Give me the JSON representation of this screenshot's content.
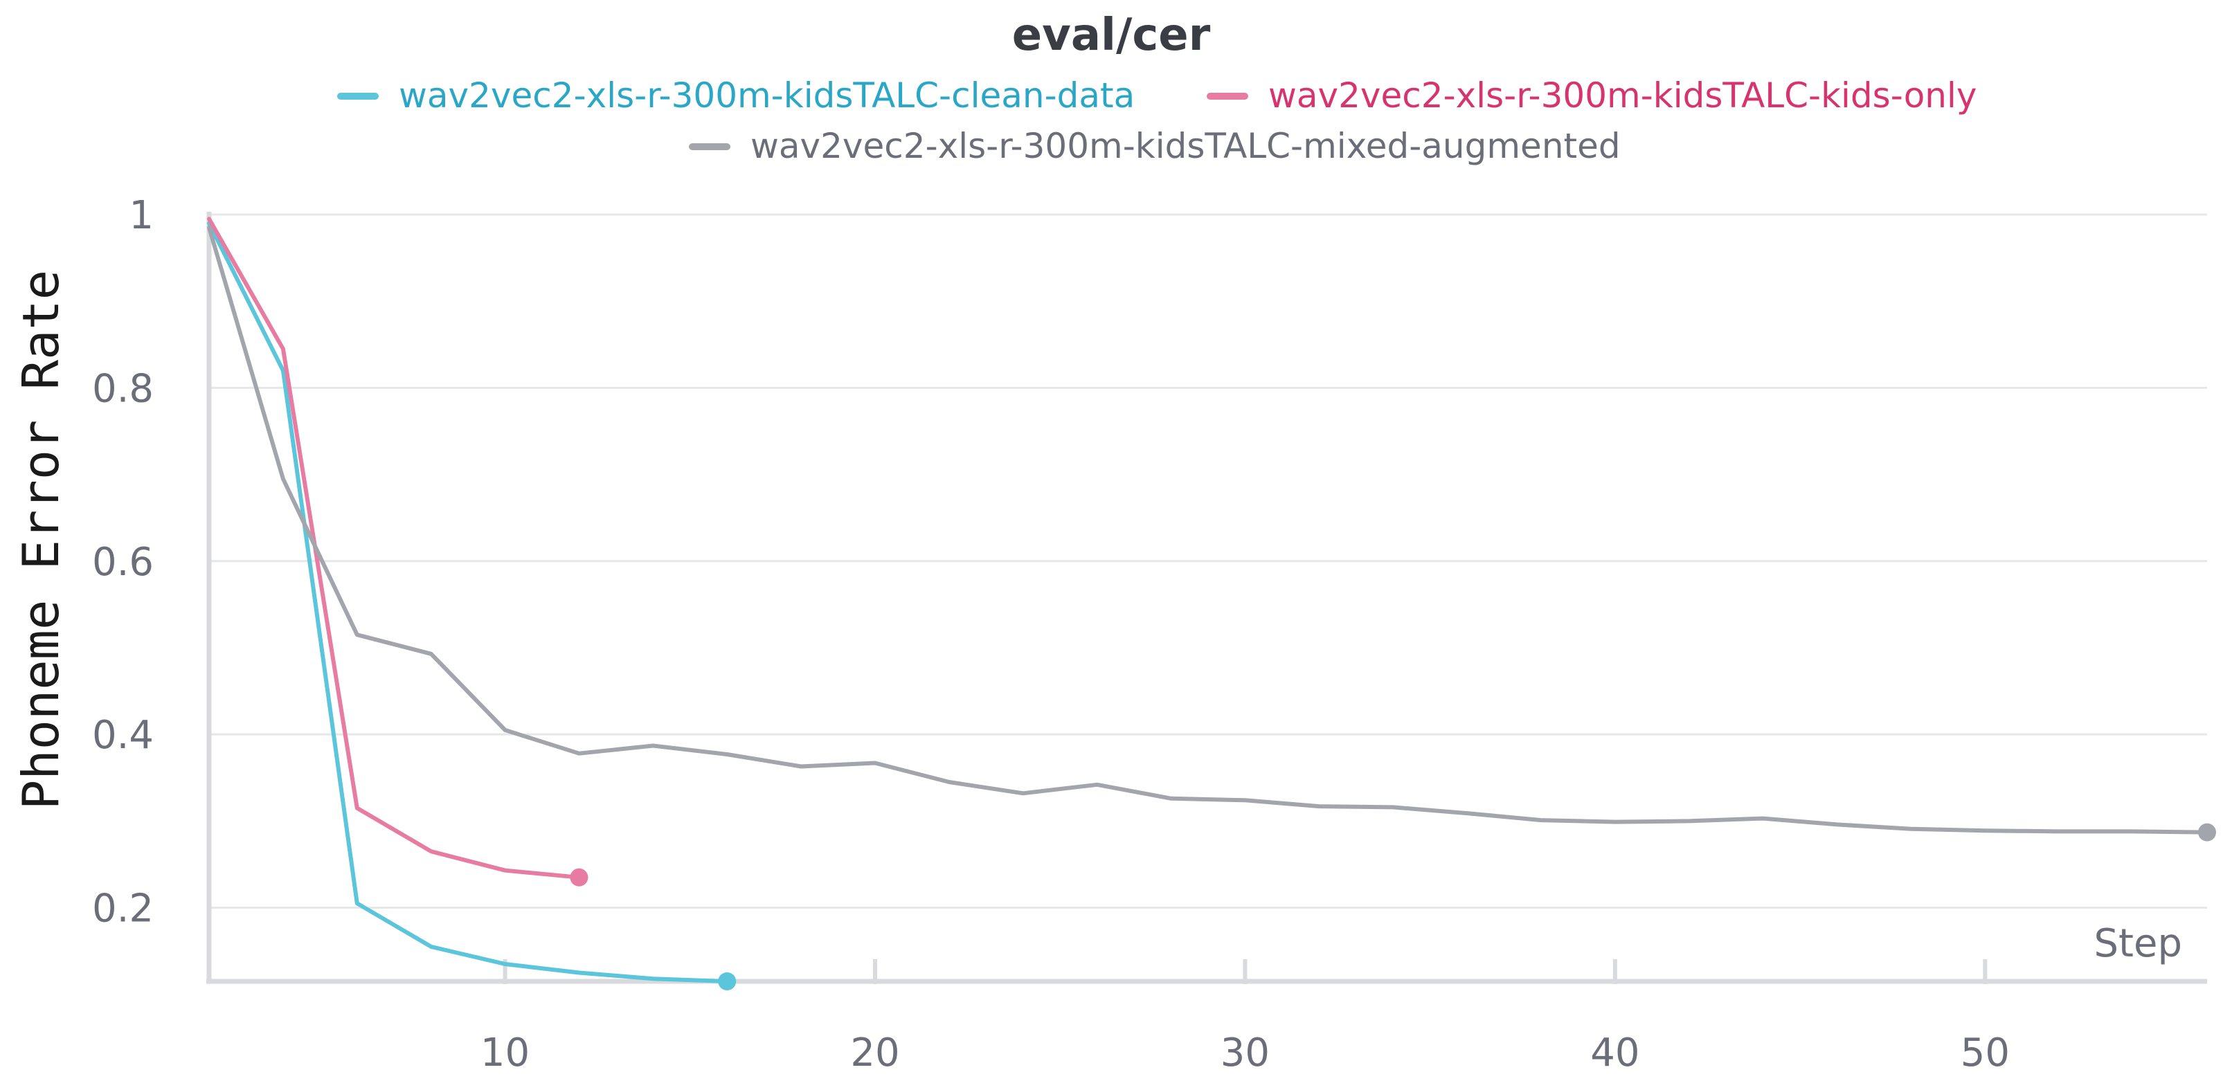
{
  "chart_data": {
    "type": "line",
    "title": "eval/cer",
    "xlabel": "Step",
    "ylabel": "Phoneme Error Rate",
    "xlim": [
      2,
      56
    ],
    "ylim": [
      0.115,
      1.0
    ],
    "xticks": [
      10,
      20,
      30,
      40,
      50
    ],
    "yticks": [
      0.2,
      0.4,
      0.6,
      0.8,
      1
    ],
    "ytick_labels": [
      "0.2",
      "0.4",
      "0.6",
      "0.8",
      "1"
    ],
    "grid": true,
    "legend_position": "top",
    "series": [
      {
        "name": "wav2vec2-xls-r-300m-kidsTALC-clean-data",
        "color": "#5bc5db",
        "text_color": "#2aa6c6",
        "x": [
          2,
          4,
          6,
          8,
          10,
          12,
          14,
          16
        ],
        "y": [
          0.99,
          0.82,
          0.205,
          0.155,
          0.135,
          0.125,
          0.118,
          0.115
        ]
      },
      {
        "name": "wav2vec2-xls-r-300m-kidsTALC-kids-only",
        "color": "#e87ba2",
        "text_color": "#d6336f",
        "x": [
          2,
          4,
          6,
          8,
          10,
          12
        ],
        "y": [
          0.995,
          0.845,
          0.315,
          0.265,
          0.243,
          0.235
        ]
      },
      {
        "name": "wav2vec2-xls-r-300m-kidsTALC-mixed-augmented",
        "color": "#a2a6ac",
        "text_color": "#6b6e78",
        "x": [
          2,
          4,
          6,
          8,
          10,
          12,
          14,
          16,
          18,
          20,
          22,
          24,
          26,
          28,
          30,
          32,
          34,
          36,
          38,
          40,
          42,
          44,
          46,
          48,
          50,
          52,
          54,
          56
        ],
        "y": [
          0.985,
          0.695,
          0.515,
          0.493,
          0.405,
          0.378,
          0.387,
          0.377,
          0.363,
          0.367,
          0.345,
          0.332,
          0.342,
          0.326,
          0.324,
          0.317,
          0.316,
          0.309,
          0.301,
          0.299,
          0.3,
          0.303,
          0.296,
          0.291,
          0.289,
          0.288,
          0.288,
          0.287
        ]
      }
    ]
  }
}
